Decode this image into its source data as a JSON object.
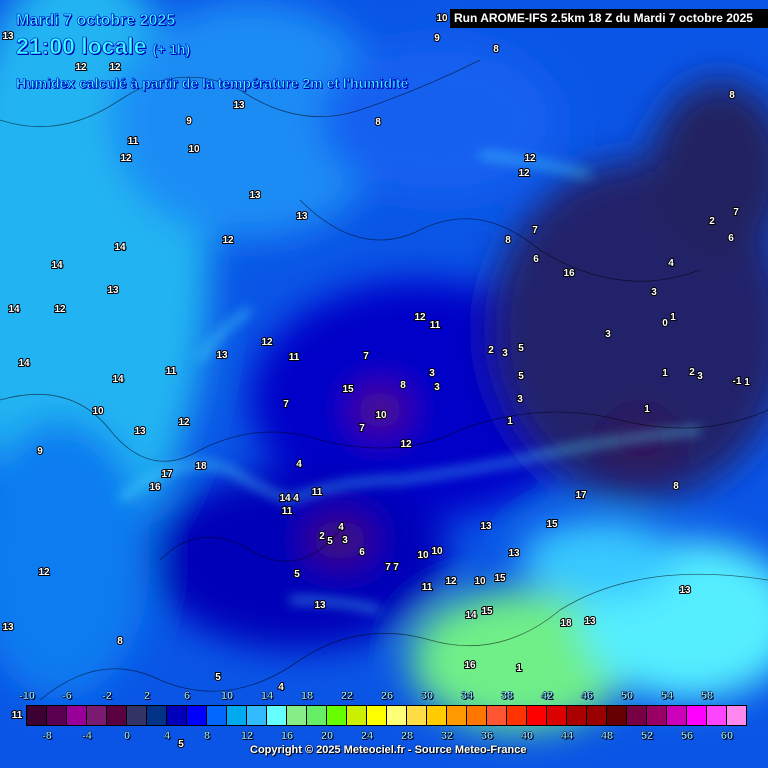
{
  "header": {
    "date": "Mardi 7 octobre 2025",
    "time": "21:00 locale",
    "offset": "(+ 1h)",
    "description": "Humidex calculé à partir de la température 2m et l'humidité",
    "run": "Run AROME-IFS 2.5km 18 Z du Mardi 7 octobre 2025"
  },
  "legend": {
    "top_labels": [
      "-10",
      "-6",
      "-2",
      "2",
      "6",
      "10",
      "14",
      "18",
      "22",
      "26",
      "30",
      "34",
      "38",
      "42",
      "46",
      "50",
      "54",
      "58"
    ],
    "bottom_labels": [
      "-8",
      "-4",
      "0",
      "4",
      "8",
      "12",
      "16",
      "20",
      "24",
      "28",
      "32",
      "36",
      "40",
      "44",
      "48",
      "52",
      "56",
      "60"
    ],
    "colors": [
      "#3d0033",
      "#5a0050",
      "#990099",
      "#7a1a70",
      "#5a0040",
      "#333366",
      "#003388",
      "#0000bb",
      "#0000ff",
      "#0066ff",
      "#00aaee",
      "#33bbff",
      "#66ffff",
      "#88ee88",
      "#66ee66",
      "#66ff00",
      "#ccee00",
      "#ffff00",
      "#ffff77",
      "#ffdd44",
      "#ffcc00",
      "#ff9900",
      "#ff7700",
      "#ff5533",
      "#ff3300",
      "#ff0000",
      "#dd0000",
      "#aa0000",
      "#990000",
      "#660000",
      "#770044",
      "#990066",
      "#cc00bb",
      "#ff00ff",
      "#ff44ff",
      "#ff88ee"
    ]
  },
  "map_labels": [
    "10",
    "9",
    "8",
    "13",
    "12",
    "12",
    "13",
    "9",
    "8",
    "8",
    "11",
    "10",
    "12",
    "13",
    "14",
    "12",
    "13",
    "12",
    "12",
    "14",
    "13",
    "12",
    "14",
    "8",
    "7",
    "6",
    "16",
    "7",
    "2",
    "6",
    "14",
    "13",
    "4",
    "3",
    "1",
    "12",
    "11",
    "12",
    "11",
    "7",
    "2",
    "3",
    "5",
    "3",
    "0",
    "1",
    "14",
    "10",
    "13",
    "9",
    "15",
    "12",
    "11",
    "7",
    "8",
    "3",
    "3",
    "1",
    "2",
    "3",
    "1",
    "-1",
    "10",
    "12",
    "7",
    "4",
    "3",
    "5",
    "1",
    "8",
    "11",
    "18",
    "17",
    "16",
    "4",
    "14",
    "11",
    "5",
    "13",
    "17",
    "15",
    "10",
    "2",
    "3",
    "13",
    "7",
    "4",
    "5",
    "6",
    "7",
    "10",
    "11",
    "12",
    "15",
    "15",
    "10",
    "13",
    "8",
    "13",
    "5",
    "12",
    "14",
    "18",
    "13",
    "16",
    "1",
    "5",
    "4",
    "11",
    "13"
  ],
  "copyright": "Copyright © 2025 Meteociel.fr - Source Meteo-France"
}
